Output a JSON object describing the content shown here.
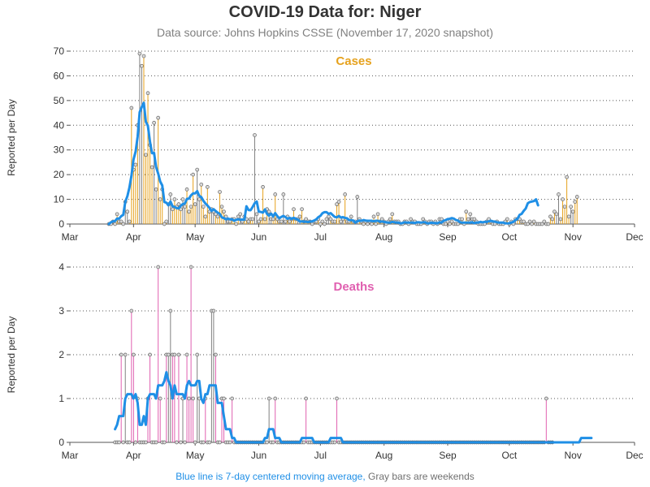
{
  "title": "COVID-19 Data for: Niger",
  "subtitle": "Data source: Johns Hopkins CSSE (November 17, 2020 snapshot)",
  "footer": {
    "blue": "Blue line is 7-day centered moving average,",
    "gray": "Gray bars are weekends"
  },
  "colors": {
    "cases": "#e6a21e",
    "deaths": "#e060b0",
    "weekend": "#808080",
    "average": "#1f8fe6",
    "marker_fill": "#d9d9d9"
  },
  "chart_data": [
    {
      "type": "bar",
      "title": "Cases",
      "ylabel": "Reported per Day",
      "xlim": [
        "2020-03-01",
        "2020-12-01"
      ],
      "ylim": [
        0,
        70
      ],
      "yticks": [
        0,
        10,
        20,
        30,
        40,
        50,
        60,
        70
      ],
      "xticks": [
        "Mar",
        "Apr",
        "May",
        "Jun",
        "Jul",
        "Aug",
        "Sep",
        "Oct",
        "Nov",
        "Dec"
      ],
      "grid": true,
      "start_date": "2020-03-20",
      "values": [
        0,
        0,
        1,
        0,
        4,
        1,
        1,
        0,
        9,
        5,
        1,
        47,
        22,
        24,
        40,
        69,
        64,
        68,
        28,
        53,
        32,
        23,
        41,
        14,
        43,
        10,
        14,
        0,
        1,
        8,
        12,
        6,
        10,
        7,
        8,
        6,
        10,
        7,
        14,
        5,
        7,
        20,
        8,
        22,
        10,
        16,
        7,
        3,
        15,
        5,
        6,
        5,
        4,
        3,
        13,
        7,
        5,
        3,
        1,
        1,
        2,
        2,
        0,
        3,
        4,
        1,
        3,
        2,
        1,
        2,
        2,
        36,
        4,
        1,
        2,
        15,
        2,
        6,
        5,
        2,
        2,
        12,
        2,
        1,
        1,
        12,
        1,
        3,
        1,
        2,
        6,
        2,
        2,
        3,
        6,
        1,
        2,
        1,
        1,
        0,
        1,
        1,
        2,
        0,
        1,
        0,
        2,
        3,
        2,
        1,
        1,
        8,
        9,
        1,
        2,
        12,
        1,
        1,
        3,
        1,
        1,
        11,
        2,
        1,
        0,
        1,
        0,
        1,
        0,
        3,
        0,
        4,
        1,
        2,
        1,
        0,
        1,
        2,
        4,
        1,
        1,
        1,
        0,
        0,
        1,
        1,
        0,
        2,
        1,
        1,
        0,
        0,
        0,
        2,
        1,
        0,
        1,
        1,
        0,
        1,
        0,
        2,
        2,
        0,
        0,
        1,
        0,
        1,
        0,
        0,
        0,
        2,
        2,
        0,
        5,
        2,
        4,
        2,
        2,
        1,
        0,
        0,
        0,
        0,
        1,
        2,
        1,
        0,
        0,
        1,
        0,
        0,
        0,
        1,
        2,
        0,
        1,
        0,
        2,
        2,
        2,
        1,
        1,
        0,
        0,
        1,
        0,
        1,
        0,
        0,
        0,
        0,
        1,
        0,
        0,
        3,
        2,
        5,
        4,
        12,
        2,
        10,
        7,
        19,
        3,
        7,
        5,
        9,
        11
      ],
      "average": [
        0,
        0.7,
        1.1,
        1.2,
        2.2,
        2.2,
        3.2,
        3.7,
        9,
        11.3,
        14.8,
        19.6,
        26.1,
        29.3,
        35.4,
        45.3,
        47.4,
        49.1,
        41.4,
        39.8,
        33.3,
        28.7,
        28.8,
        23.1,
        20.4,
        17.2,
        15.6,
        8.9,
        8.6,
        7.6,
        9.1,
        7.2,
        6.9,
        6.4,
        6.3,
        7.4,
        8.1,
        8.3,
        10.2,
        10.3,
        11.6,
        12.4,
        12.4,
        13.3,
        11.4,
        10.9,
        9.4,
        8.3,
        7.5,
        6.5,
        5.3,
        6,
        5.3,
        4.6,
        4.1,
        2.7,
        2.4,
        1.9,
        2.2,
        1.9,
        1.9,
        1.3,
        1.7,
        1.9,
        1.7,
        1.8,
        1.7,
        7.2,
        5.7,
        5.6,
        6.9,
        8.4,
        9.1,
        5,
        4.9,
        4.6,
        5.9,
        4.1,
        3.4,
        4.2,
        3.1,
        4.4,
        3.2,
        2.3,
        2.9,
        3.3,
        2.8,
        2.1,
        2.5,
        2.1,
        2.5,
        2.1,
        1.8,
        1,
        1.1,
        1,
        0.9,
        0.8,
        1,
        1.1,
        1.4,
        1.9,
        2.8,
        3.3,
        4.4,
        4.8,
        4.8,
        4.1,
        4.4,
        3.6,
        2.9,
        2.7,
        3.3,
        2.6,
        2.8,
        2.5,
        2.3,
        1.6,
        1.6,
        1.4,
        0.6,
        1.1,
        1.4,
        1.3,
        1.6,
        1.4,
        1.3,
        1.3,
        1.3,
        1.1,
        1.3,
        1.3,
        1,
        1,
        0.9,
        0.7,
        0.6,
        0.6,
        0.9,
        0.7,
        0.6,
        0.6,
        0.3,
        0.4,
        0.7,
        0.6,
        0.6,
        0.6,
        0.6,
        0.4,
        0.7,
        0.7,
        0.6,
        0.7,
        0.7,
        0.3,
        0.3,
        0.6,
        0.4,
        0.4,
        0.3,
        0.7,
        0.6,
        1.3,
        1.6,
        2,
        2.1,
        2.4,
        2.2,
        1.6,
        1.4,
        0.7,
        0.6,
        0.6,
        0.6,
        0.6,
        0.6,
        0.7,
        0.4,
        0.6,
        0.6,
        0.9,
        0.7,
        0.9,
        0.9,
        1.1,
        1.3,
        1.1,
        1,
        0.7,
        0.6,
        0.6,
        0.6,
        0.3,
        0.3,
        0.3,
        0.6,
        0.9,
        1.6,
        2.1,
        3.7,
        4.1,
        5.3,
        6.3,
        8.4,
        8.9,
        9.1,
        9.3,
        10,
        7.6
      ]
    },
    {
      "type": "bar",
      "title": "Deaths",
      "ylabel": "Reported per Day",
      "xlim": [
        "2020-03-01",
        "2020-12-01"
      ],
      "ylim": [
        0,
        4
      ],
      "yticks": [
        0,
        1,
        2,
        3,
        4
      ],
      "xticks": [
        "Mar",
        "Apr",
        "May",
        "Jun",
        "Jul",
        "Aug",
        "Sep",
        "Oct",
        "Nov",
        "Dec"
      ],
      "grid": true,
      "start_date": "2020-03-23",
      "values": [
        0,
        0,
        0,
        2,
        0,
        2,
        0,
        0,
        3,
        2,
        0,
        1,
        0,
        0,
        0,
        0,
        1,
        2,
        0,
        0,
        0,
        4,
        1,
        0,
        0,
        2,
        2,
        3,
        2,
        2,
        0,
        2,
        0,
        1,
        0,
        2,
        1,
        4,
        1,
        0,
        2,
        1,
        0,
        0,
        1,
        0,
        0,
        3,
        3,
        2,
        0,
        0,
        1,
        1,
        0,
        0,
        0,
        1,
        0,
        0,
        0,
        0,
        0,
        0,
        0,
        0,
        0,
        0,
        0,
        0,
        0,
        0,
        0,
        0,
        0,
        1,
        0,
        0,
        1,
        0,
        0,
        0,
        0,
        0,
        0,
        0,
        0,
        0,
        0,
        0,
        0,
        0,
        0,
        1,
        0,
        0,
        0,
        0,
        0,
        0,
        0,
        0,
        0,
        0,
        0,
        0,
        0,
        0,
        1,
        0,
        0,
        0,
        0,
        0,
        0,
        0,
        0,
        0,
        0,
        0,
        0,
        0,
        0,
        0,
        0,
        0,
        0,
        0,
        0,
        0,
        0,
        0,
        0,
        0,
        0,
        0,
        0,
        0,
        0,
        0,
        0,
        0,
        0,
        0,
        0,
        0,
        0,
        0,
        0,
        0,
        0,
        0,
        0,
        0,
        0,
        0,
        0,
        0,
        0,
        0,
        0,
        0,
        0,
        0,
        0,
        0,
        0,
        0,
        0,
        0,
        0,
        0,
        0,
        0,
        0,
        0,
        0,
        0,
        0,
        0,
        0,
        0,
        0,
        0,
        0,
        0,
        0,
        0,
        0,
        0,
        0,
        0,
        0,
        0,
        0,
        0,
        0,
        0,
        0,
        0,
        0,
        0,
        0,
        0,
        0,
        0,
        0,
        0,
        0,
        0,
        1,
        0,
        0,
        0
      ],
      "average": [
        0.3,
        0.4,
        0.6,
        0.6,
        0.6,
        1,
        1.1,
        1.1,
        1.1,
        1,
        1.1,
        0.9,
        0.4,
        0.4,
        0.6,
        0.4,
        1,
        1.1,
        1.1,
        1.1,
        1,
        1.3,
        1.3,
        1.3,
        1.4,
        1.6,
        1.4,
        1.3,
        1,
        1.3,
        1.1,
        1.1,
        1.1,
        1.1,
        1,
        1.3,
        1.4,
        1.3,
        1.3,
        1.3,
        1.4,
        1.4,
        1,
        0.9,
        1.1,
        1.1,
        1.3,
        1.3,
        1.3,
        1.3,
        0.9,
        0.9,
        0.9,
        0.6,
        0.3,
        0.3,
        0.3,
        0.1,
        0.1,
        0,
        0,
        0,
        0,
        0,
        0,
        0,
        0,
        0,
        0,
        0,
        0,
        0,
        0,
        0.1,
        0.1,
        0.3,
        0.3,
        0.3,
        0.1,
        0.1,
        0.1,
        0,
        0,
        0,
        0,
        0,
        0,
        0,
        0,
        0,
        0,
        0.1,
        0.1,
        0.1,
        0.1,
        0.1,
        0.1,
        0,
        0,
        0,
        0,
        0,
        0,
        0,
        0,
        0.1,
        0.1,
        0.1,
        0.1,
        0.1,
        0.1,
        0,
        0,
        0,
        0,
        0,
        0,
        0,
        0,
        0,
        0,
        0,
        0,
        0,
        0,
        0,
        0,
        0,
        0,
        0,
        0,
        0,
        0,
        0,
        0,
        0,
        0,
        0,
        0,
        0,
        0,
        0,
        0,
        0,
        0,
        0,
        0,
        0,
        0,
        0,
        0,
        0,
        0,
        0,
        0,
        0,
        0,
        0,
        0,
        0,
        0,
        0,
        0,
        0,
        0,
        0,
        0,
        0,
        0,
        0,
        0,
        0,
        0,
        0,
        0,
        0,
        0,
        0,
        0,
        0,
        0,
        0,
        0,
        0,
        0,
        0,
        0,
        0,
        0,
        0,
        0,
        0,
        0,
        0,
        0,
        0,
        0,
        0,
        0,
        0,
        0,
        0,
        0,
        0,
        0,
        0,
        0,
        0,
        0,
        0,
        0,
        0,
        0,
        0,
        0,
        0,
        0,
        0,
        0,
        0,
        0,
        0,
        0,
        0,
        0,
        0,
        0,
        0.1,
        0.1,
        0.1,
        0.1,
        0.1,
        0.1
      ]
    }
  ]
}
